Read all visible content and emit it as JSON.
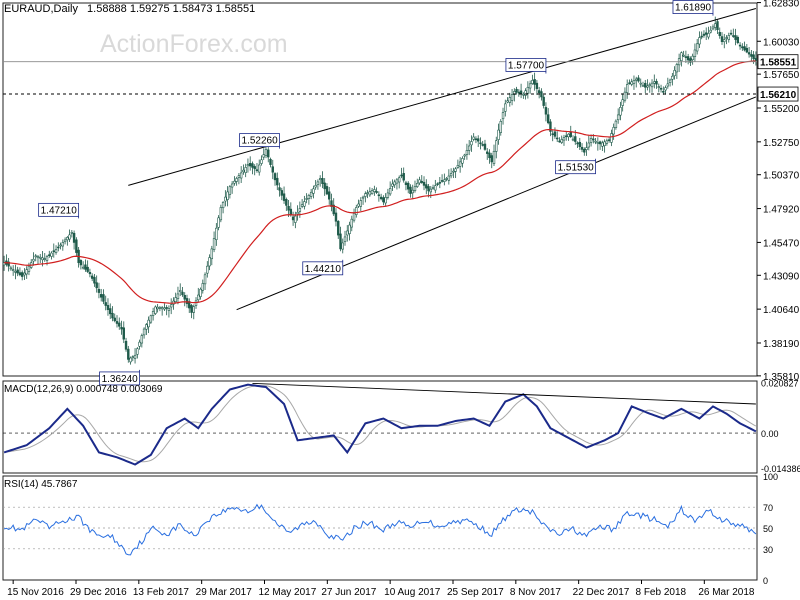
{
  "header": {
    "symbol": "EURAUD,Daily",
    "ohlc": "1.58888 1.59275 1.58473 1.58551",
    "watermark": "ActionForex.com"
  },
  "colors": {
    "candle": "#1f5a4a",
    "ema": "#d11f1f",
    "macd": "#1b2a8a",
    "signal": "#a8a8a8",
    "rsi": "#2a6fe0",
    "trend": "#000000"
  },
  "chart_data": [
    {
      "type": "candlestick",
      "title": "EURAUD,Daily",
      "ylim": [
        1.358,
        1.628
      ],
      "y_ticks": [
        "1.62830",
        "1.60030",
        "1.57650",
        "1.55200",
        "1.52750",
        "1.50370",
        "1.47920",
        "1.45470",
        "1.43090",
        "1.40640",
        "1.38190",
        "1.35810"
      ],
      "x_ticks": [
        "15 Nov 2016",
        "29 Dec 2016",
        "13 Feb 2017",
        "29 Mar 2017",
        "12 May 2017",
        "27 Jun 2017",
        "10 Aug 2017",
        "25 Sep 2017",
        "8 Nov 2017",
        "22 Dec 2017",
        "8 Feb 2018",
        "26 Mar 2018"
      ],
      "close_keypoints": [
        [
          0,
          1.44
        ],
        [
          8,
          1.43
        ],
        [
          14,
          1.445
        ],
        [
          18,
          1.443
        ],
        [
          24,
          1.451
        ],
        [
          30,
          1.462
        ],
        [
          33,
          1.44
        ],
        [
          38,
          1.432
        ],
        [
          43,
          1.415
        ],
        [
          48,
          1.4
        ],
        [
          52,
          1.392
        ],
        [
          55,
          1.37
        ],
        [
          58,
          1.373
        ],
        [
          62,
          1.392
        ],
        [
          67,
          1.408
        ],
        [
          73,
          1.407
        ],
        [
          78,
          1.42
        ],
        [
          83,
          1.404
        ],
        [
          88,
          1.425
        ],
        [
          92,
          1.45
        ],
        [
          96,
          1.48
        ],
        [
          100,
          1.495
        ],
        [
          104,
          1.503
        ],
        [
          108,
          1.511
        ],
        [
          112,
          1.507
        ],
        [
          116,
          1.522
        ],
        [
          120,
          1.5
        ],
        [
          124,
          1.485
        ],
        [
          128,
          1.471
        ],
        [
          132,
          1.482
        ],
        [
          136,
          1.491
        ],
        [
          140,
          1.501
        ],
        [
          144,
          1.486
        ],
        [
          147,
          1.47
        ],
        [
          149,
          1.45
        ],
        [
          152,
          1.463
        ],
        [
          156,
          1.48
        ],
        [
          160,
          1.49
        ],
        [
          164,
          1.493
        ],
        [
          168,
          1.484
        ],
        [
          172,
          1.497
        ],
        [
          176,
          1.503
        ],
        [
          180,
          1.49
        ],
        [
          184,
          1.5
        ],
        [
          188,
          1.492
        ],
        [
          192,
          1.497
        ],
        [
          196,
          1.501
        ],
        [
          200,
          1.508
        ],
        [
          204,
          1.518
        ],
        [
          208,
          1.531
        ],
        [
          212,
          1.525
        ],
        [
          216,
          1.513
        ],
        [
          219,
          1.536
        ],
        [
          222,
          1.555
        ],
        [
          226,
          1.564
        ],
        [
          230,
          1.562
        ],
        [
          234,
          1.572
        ],
        [
          238,
          1.56
        ],
        [
          242,
          1.535
        ],
        [
          246,
          1.528
        ],
        [
          250,
          1.533
        ],
        [
          254,
          1.526
        ],
        [
          257,
          1.52
        ],
        [
          260,
          1.53
        ],
        [
          264,
          1.526
        ],
        [
          268,
          1.529
        ],
        [
          272,
          1.547
        ],
        [
          276,
          1.569
        ],
        [
          280,
          1.573
        ],
        [
          284,
          1.567
        ],
        [
          288,
          1.571
        ],
        [
          292,
          1.564
        ],
        [
          296,
          1.575
        ],
        [
          300,
          1.592
        ],
        [
          304,
          1.585
        ],
        [
          308,
          1.603
        ],
        [
          312,
          1.606
        ],
        [
          315,
          1.613
        ],
        [
          318,
          1.6
        ],
        [
          322,
          1.606
        ],
        [
          326,
          1.597
        ],
        [
          330,
          1.591
        ],
        [
          333,
          1.586
        ]
      ],
      "series": [
        {
          "name": "close",
          "n": 334
        },
        {
          "name": "EMA55",
          "period": 55
        }
      ],
      "price_labels": [
        {
          "text": "1.61890",
          "bar": 314,
          "value": 1.6189,
          "anchor": "above"
        },
        {
          "text": "1.57700",
          "bar": 240,
          "value": 1.577,
          "anchor": "above"
        },
        {
          "text": "1.52260",
          "bar": 122,
          "value": 1.5226,
          "anchor": "above"
        },
        {
          "text": "1.47210",
          "bar": 33,
          "value": 1.4721,
          "anchor": "above"
        },
        {
          "text": "1.51530",
          "bar": 262,
          "value": 1.5153,
          "anchor": "below"
        },
        {
          "text": "1.44210",
          "bar": 150,
          "value": 1.4421,
          "anchor": "below"
        },
        {
          "text": "1.36240",
          "bar": 60,
          "value": 1.3624,
          "anchor": "below"
        }
      ],
      "level_tags": [
        {
          "text": "1.58551",
          "value": 1.58551
        },
        {
          "text": "1.56210",
          "value": 1.5621
        }
      ],
      "trendlines": [
        {
          "from": [
            55,
            1.496
          ],
          "to": [
            333,
            1.624
          ]
        },
        {
          "from": [
            103,
            1.406
          ],
          "to": [
            333,
            1.56
          ]
        }
      ]
    },
    {
      "type": "line",
      "title": "MACD(12,26,9) 0.000748 0.003069",
      "ylim": [
        -0.0165,
        0.0215
      ],
      "y_ticks": [
        "0.020827",
        "0.00",
        "-0.014386"
      ],
      "series": [
        {
          "name": "MACD",
          "keypoints": [
            [
              0,
              -0.008
            ],
            [
              10,
              -0.005
            ],
            [
              20,
              0.002
            ],
            [
              28,
              0.01
            ],
            [
              35,
              0.003
            ],
            [
              42,
              -0.008
            ],
            [
              50,
              -0.01
            ],
            [
              58,
              -0.013
            ],
            [
              65,
              -0.009
            ],
            [
              72,
              0.002
            ],
            [
              80,
              0.006
            ],
            [
              86,
              0.002
            ],
            [
              92,
              0.01
            ],
            [
              100,
              0.018
            ],
            [
              108,
              0.02
            ],
            [
              116,
              0.019
            ],
            [
              124,
              0.012
            ],
            [
              130,
              -0.003
            ],
            [
              138,
              -0.002
            ],
            [
              146,
              -0.001
            ],
            [
              152,
              -0.008
            ],
            [
              160,
              0.004
            ],
            [
              168,
              0.006
            ],
            [
              176,
              0.002
            ],
            [
              184,
              0.003
            ],
            [
              192,
              0.003
            ],
            [
              200,
              0.005
            ],
            [
              208,
              0.006
            ],
            [
              215,
              0.003
            ],
            [
              222,
              0.013
            ],
            [
              230,
              0.016
            ],
            [
              236,
              0.011
            ],
            [
              242,
              0.002
            ],
            [
              250,
              -0.002
            ],
            [
              258,
              -0.006
            ],
            [
              266,
              -0.003
            ],
            [
              272,
              0.0
            ],
            [
              278,
              0.011
            ],
            [
              286,
              0.008
            ],
            [
              292,
              0.006
            ],
            [
              300,
              0.01
            ],
            [
              308,
              0.006
            ],
            [
              314,
              0.011
            ],
            [
              320,
              0.008
            ],
            [
              326,
              0.004
            ],
            [
              333,
              0.0007
            ]
          ]
        },
        {
          "name": "Signal",
          "lag": 9
        }
      ],
      "trendlines": [
        {
          "from": [
            110,
            0.0205
          ],
          "to": [
            333,
            0.012
          ]
        }
      ]
    },
    {
      "type": "line",
      "title": "RSI(14) 45.7867",
      "ylim": [
        0,
        100
      ],
      "y_ticks": [
        "100",
        "70",
        "50",
        "30",
        "0"
      ],
      "series": [
        {
          "name": "RSI",
          "keypoints": [
            [
              0,
              52
            ],
            [
              8,
              48
            ],
            [
              14,
              58
            ],
            [
              20,
              50
            ],
            [
              26,
              57
            ],
            [
              33,
              60
            ],
            [
              40,
              44
            ],
            [
              48,
              41
            ],
            [
              55,
              25
            ],
            [
              60,
              35
            ],
            [
              66,
              50
            ],
            [
              72,
              44
            ],
            [
              78,
              53
            ],
            [
              84,
              42
            ],
            [
              90,
              58
            ],
            [
              96,
              65
            ],
            [
              102,
              70
            ],
            [
              108,
              66
            ],
            [
              114,
              72
            ],
            [
              120,
              56
            ],
            [
              126,
              45
            ],
            [
              132,
              53
            ],
            [
              138,
              57
            ],
            [
              144,
              43
            ],
            [
              150,
              38
            ],
            [
              156,
              52
            ],
            [
              162,
              55
            ],
            [
              168,
              48
            ],
            [
              174,
              56
            ],
            [
              180,
              50
            ],
            [
              186,
              58
            ],
            [
              192,
              52
            ],
            [
              198,
              55
            ],
            [
              204,
              58
            ],
            [
              210,
              52
            ],
            [
              216,
              44
            ],
            [
              222,
              60
            ],
            [
              228,
              68
            ],
            [
              234,
              65
            ],
            [
              240,
              50
            ],
            [
              246,
              44
            ],
            [
              252,
              49
            ],
            [
              258,
              42
            ],
            [
              264,
              52
            ],
            [
              270,
              48
            ],
            [
              276,
              65
            ],
            [
              282,
              62
            ],
            [
              288,
              58
            ],
            [
              294,
              50
            ],
            [
              300,
              68
            ],
            [
              306,
              56
            ],
            [
              312,
              67
            ],
            [
              318,
              58
            ],
            [
              326,
              52
            ],
            [
              333,
              46
            ]
          ]
        }
      ]
    }
  ]
}
